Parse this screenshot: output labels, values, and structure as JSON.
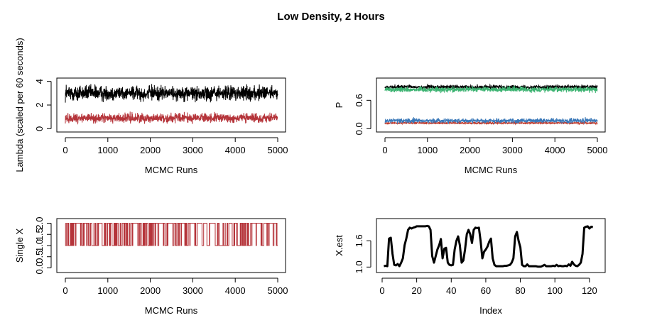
{
  "figure": {
    "title": "Low Density, 2 Hours"
  },
  "chart_data": [
    {
      "type": "line",
      "xlabel": "MCMC Runs",
      "ylabel": "Lambda (scaled per 60 seconds)",
      "xlim": [
        0,
        5000
      ],
      "ylim": [
        0,
        4
      ],
      "x_ticks": [
        0,
        1000,
        2000,
        3000,
        4000,
        5000
      ],
      "y_ticks": [
        0,
        2,
        4
      ],
      "n_iter": 5000,
      "series": [
        {
          "color": "#000000",
          "burn_in_start": 1.6,
          "mean": 3.0,
          "spread": 0.45,
          "min": 2.2,
          "max": 4.0
        },
        {
          "color": "#b5343a",
          "burn_in_start": 0.3,
          "mean": 0.9,
          "spread": 0.28,
          "min": 0.4,
          "max": 1.7
        }
      ]
    },
    {
      "type": "line",
      "xlabel": "MCMC Runs",
      "ylabel": "P",
      "xlim": [
        0,
        5000
      ],
      "ylim": [
        0,
        1
      ],
      "x_ticks": [
        0,
        1000,
        2000,
        3000,
        4000,
        5000
      ],
      "y_ticks": [
        "0.0",
        "0.6"
      ],
      "y_tick_values": [
        0,
        0.6
      ],
      "n_iter": 5000,
      "series": [
        {
          "color": "#000000",
          "burn_in_start": 0.86,
          "mean": 0.88,
          "spread": 0.03,
          "min": 0.8,
          "max": 0.95
        },
        {
          "color": "#3cb371",
          "burn_in_start": 0.8,
          "mean": 0.83,
          "spread": 0.04,
          "min": 0.72,
          "max": 0.92
        },
        {
          "color": "#c0392b",
          "burn_in_start": 0.1,
          "mean": 0.12,
          "spread": 0.015,
          "min": 0.08,
          "max": 0.17
        },
        {
          "color": "#3a78b8",
          "burn_in_start": 0.15,
          "mean": 0.17,
          "spread": 0.035,
          "min": 0.1,
          "max": 0.3
        }
      ]
    },
    {
      "type": "line",
      "xlabel": "MCMC Runs",
      "ylabel": "Single X",
      "xlim": [
        0,
        5000
      ],
      "ylim": [
        0,
        2
      ],
      "x_ticks": [
        0,
        1000,
        2000,
        3000,
        4000,
        5000
      ],
      "y_ticks": [
        "0.0",
        "0.5",
        "1.0",
        "1.5",
        "2.0"
      ],
      "y_tick_values": [
        0,
        0.5,
        1,
        1.5,
        2
      ],
      "n_iter": 5000,
      "series": [
        {
          "color": "#b5343a",
          "values": [
            1,
            2
          ],
          "switch_prob": 0.25,
          "gaps": [
            [
              250,
              350
            ],
            [
              780,
              860
            ],
            [
              1600,
              1700
            ],
            [
              2450,
              2520
            ],
            [
              3400,
              3500
            ],
            [
              4500,
              4600
            ]
          ]
        }
      ]
    },
    {
      "type": "line",
      "xlabel": "Index",
      "ylabel": "X.est",
      "xlim": [
        0,
        125
      ],
      "ylim": [
        0.95,
        2.0
      ],
      "x_ticks": [
        0,
        20,
        40,
        60,
        80,
        100,
        120
      ],
      "y_ticks": [
        "1.0",
        "1.6"
      ],
      "y_tick_values": [
        1.0,
        1.6
      ],
      "series": [
        {
          "color": "#000000",
          "x": [
            1,
            2,
            3,
            4,
            5,
            6,
            7,
            8,
            9,
            10,
            11,
            12,
            13,
            14,
            15,
            16,
            17,
            18,
            19,
            20,
            21,
            22,
            23,
            24,
            25,
            26,
            27,
            28,
            29,
            30,
            31,
            32,
            33,
            34,
            35,
            36,
            37,
            38,
            39,
            40,
            41,
            42,
            43,
            44,
            45,
            46,
            47,
            48,
            49,
            50,
            51,
            52,
            53,
            54,
            55,
            56,
            57,
            58,
            59,
            60,
            61,
            62,
            63,
            64,
            65,
            66,
            67,
            68,
            69,
            70,
            71,
            72,
            73,
            74,
            75,
            76,
            77,
            78,
            79,
            80,
            81,
            82,
            83,
            84,
            85,
            86,
            87,
            88,
            89,
            90,
            91,
            92,
            93,
            94,
            95,
            96,
            97,
            98,
            99,
            100,
            101,
            102,
            103,
            104,
            105,
            106,
            107,
            108,
            109,
            110,
            111,
            112,
            113,
            114,
            115,
            116,
            117,
            118,
            119,
            120,
            121,
            122
          ],
          "y": [
            1.02,
            1.03,
            1.02,
            1.65,
            1.67,
            1.3,
            1.05,
            1.04,
            1.07,
            1.02,
            1.1,
            1.2,
            1.5,
            1.65,
            1.85,
            1.9,
            1.88,
            1.9,
            1.91,
            1.93,
            1.93,
            1.93,
            1.93,
            1.93,
            1.93,
            1.94,
            1.93,
            1.85,
            1.25,
            1.1,
            1.25,
            1.4,
            1.5,
            1.64,
            1.2,
            1.42,
            1.44,
            1.1,
            1.05,
            1.04,
            1.05,
            1.4,
            1.6,
            1.7,
            1.5,
            1.1,
            1.15,
            1.4,
            1.75,
            1.85,
            1.75,
            1.55,
            1.85,
            1.9,
            1.89,
            1.9,
            1.6,
            1.2,
            1.35,
            1.4,
            1.47,
            1.58,
            1.65,
            1.2,
            1.05,
            1.02,
            1.02,
            1.02,
            1.02,
            1.02,
            1.03,
            1.03,
            1.04,
            1.05,
            1.1,
            1.2,
            1.7,
            1.8,
            1.6,
            1.45,
            1.05,
            1.02,
            1.02,
            1.06,
            1.02,
            1.02,
            1.02,
            1.02,
            1.02,
            1.01,
            1.01,
            1.01,
            1.03,
            1.05,
            1.02,
            1.02,
            1.02,
            1.02,
            1.03,
            1.02,
            1.05,
            1.02,
            1.03,
            1.02,
            1.02,
            1.03,
            1.02,
            1.06,
            1.03,
            1.12,
            1.06,
            1.03,
            1.02,
            1.05,
            1.1,
            1.3,
            1.9,
            1.92,
            1.93,
            1.88,
            1.92,
            1.91
          ]
        }
      ]
    }
  ]
}
